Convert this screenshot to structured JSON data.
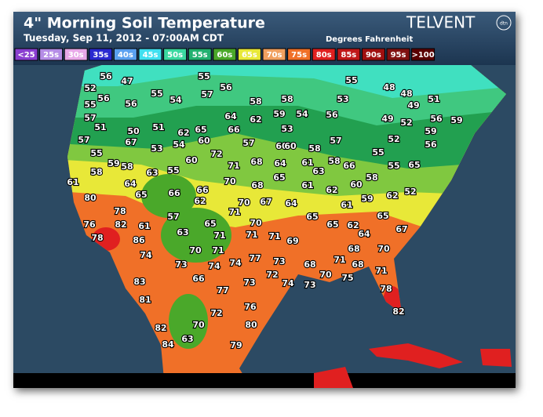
{
  "header": {
    "title": "4\" Morning Soil Temperature",
    "subtitle": "Tuesday, Sep 11, 2012 - 07:00AM CDT",
    "brand": "TELVENT",
    "brand_mark": "dtn",
    "units": "Degrees Fahrenheit"
  },
  "legend": [
    {
      "label": "<25",
      "color": "#8a3fd0"
    },
    {
      "label": "25s",
      "color": "#b58de6"
    },
    {
      "label": "30s",
      "color": "#e8a8e8"
    },
    {
      "label": "35s",
      "color": "#2a2ad0"
    },
    {
      "label": "40s",
      "color": "#5aa0f0"
    },
    {
      "label": "45s",
      "color": "#40e0f0"
    },
    {
      "label": "50s",
      "color": "#3ad8a0"
    },
    {
      "label": "55s",
      "color": "#22b070"
    },
    {
      "label": "60s",
      "color": "#4aa82a"
    },
    {
      "label": "65s",
      "color": "#e8e838"
    },
    {
      "label": "70s",
      "color": "#f0a060"
    },
    {
      "label": "75s",
      "color": "#f07028"
    },
    {
      "label": "80s",
      "color": "#e02020"
    },
    {
      "label": "85s",
      "color": "#c01818"
    },
    {
      "label": "90s",
      "color": "#a01010"
    },
    {
      "label": "95s",
      "color": "#801010"
    },
    {
      "label": ">100",
      "color": "#5a0000"
    }
  ],
  "readings": [
    56,
    47,
    52,
    56,
    55,
    56,
    55,
    54,
    55,
    56,
    57,
    58,
    58,
    55,
    48,
    48,
    53,
    49,
    51,
    57,
    51,
    50,
    51,
    62,
    65,
    64,
    62,
    59,
    54,
    56,
    49,
    52,
    56,
    59,
    53,
    57,
    67,
    53,
    54,
    60,
    66,
    57,
    59,
    57,
    52,
    56,
    55,
    59,
    58,
    55,
    60,
    72,
    60,
    58,
    55,
    63,
    61,
    58,
    71,
    68,
    64,
    60,
    63,
    58,
    66,
    55,
    65,
    58,
    61,
    64,
    70,
    68,
    65,
    61,
    62,
    60,
    62,
    52,
    80,
    65,
    66,
    66,
    62,
    70,
    67,
    64,
    61,
    59,
    78,
    71,
    57,
    65,
    65,
    76,
    82,
    61,
    65,
    70,
    65,
    62,
    67,
    78,
    86,
    63,
    71,
    71,
    71,
    69,
    64,
    74,
    70,
    71,
    77,
    73,
    68,
    71,
    68,
    74,
    74,
    73,
    70,
    68,
    71,
    72,
    70,
    75,
    74,
    73,
    83,
    66,
    73,
    77,
    78,
    81,
    76,
    72,
    82,
    82,
    70,
    80,
    63,
    84,
    79
  ]
}
